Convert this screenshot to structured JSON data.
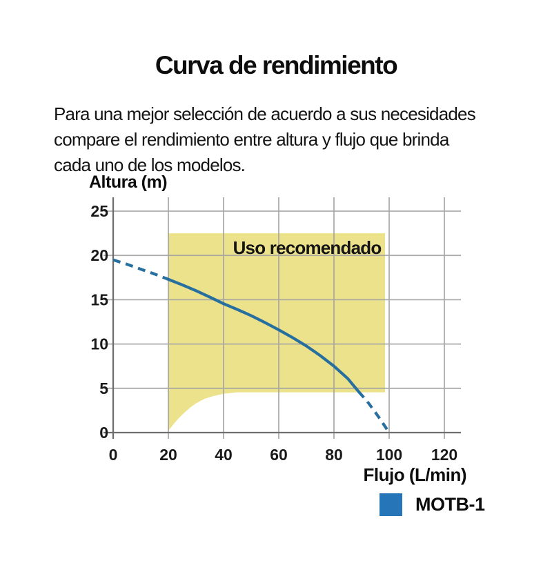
{
  "title": "Curva de rendimiento",
  "intro": {
    "lines": [
      "Para una mejor selección de acuerdo a sus necesidades",
      "compare el rendimiento entre altura y flujo que brinda",
      "cada uno de los modelos."
    ]
  },
  "chart_data": {
    "type": "line",
    "title": "Curva de rendimiento",
    "xlabel": "Flujo (L/min)",
    "ylabel": "Altura (m)",
    "x_ticks": [
      0,
      20,
      40,
      60,
      80,
      100,
      120
    ],
    "y_ticks": [
      0,
      5,
      10,
      15,
      20,
      25
    ],
    "xlim": [
      0,
      126
    ],
    "ylim": [
      0,
      26.6
    ],
    "grid": true,
    "legend_position": "bottom-right",
    "series": [
      {
        "name": "MOTB-1",
        "color": "#276f9e",
        "points": [
          [
            0,
            19.5
          ],
          [
            5,
            19.0
          ],
          [
            10,
            18.45
          ],
          [
            15,
            17.9
          ],
          [
            20,
            17.3
          ],
          [
            25,
            16.68
          ],
          [
            30,
            16.02
          ],
          [
            35,
            15.3
          ],
          [
            40,
            14.55
          ],
          [
            45,
            13.9
          ],
          [
            50,
            13.2
          ],
          [
            55,
            12.42
          ],
          [
            60,
            11.6
          ],
          [
            65,
            10.72
          ],
          [
            70,
            9.78
          ],
          [
            75,
            8.7
          ],
          [
            80,
            7.5
          ],
          [
            85,
            6.1
          ],
          [
            89,
            4.6
          ],
          [
            92,
            3.55
          ],
          [
            96,
            1.85
          ],
          [
            100,
            0
          ]
        ],
        "solid_range": [
          20,
          89
        ],
        "note": "dashed outside solid_range"
      }
    ],
    "recommended_region": {
      "label": "Uso recomendado",
      "fill": "#ede28c",
      "x_range": [
        20,
        98.5
      ],
      "y_top": 22.5,
      "bottom_edge": [
        [
          20,
          0.2
        ],
        [
          22,
          1.0
        ],
        [
          24,
          1.7
        ],
        [
          26,
          2.3
        ],
        [
          28,
          2.85
        ],
        [
          30,
          3.3
        ],
        [
          33,
          3.8
        ],
        [
          36,
          4.1
        ],
        [
          40,
          4.38
        ],
        [
          45,
          4.55
        ],
        [
          98.5,
          4.55
        ]
      ]
    },
    "legend": [
      {
        "label": "MOTB-1",
        "color": "#2675b8"
      }
    ]
  },
  "colors": {
    "background": "#ffffff",
    "gridline": "#a3a3a3",
    "axis": "#6e6e6e",
    "tick_text": "#1a1a1a",
    "curve": "#276f9e",
    "region_fill": "#ede28c",
    "legend_swatch": "#2675b8"
  }
}
